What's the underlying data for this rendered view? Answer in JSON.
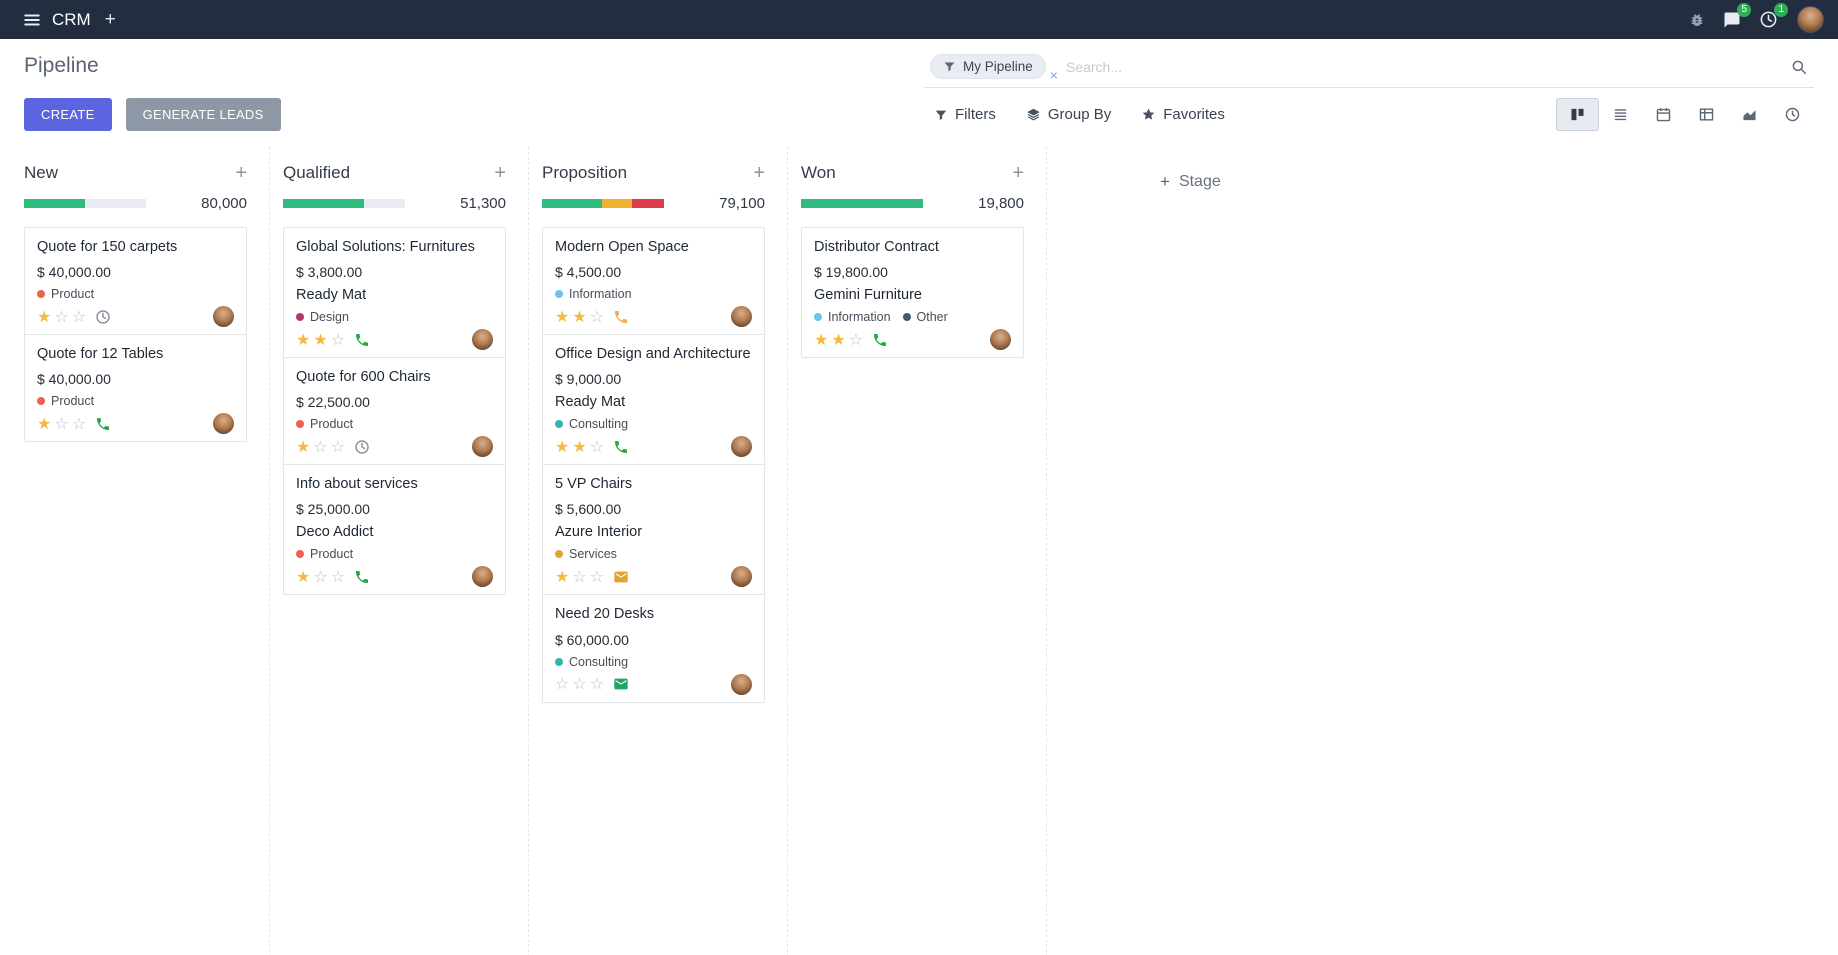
{
  "icons": {
    "plus": "+",
    "close": "×",
    "star_filled": "★",
    "star_empty": "☆"
  },
  "topbar": {
    "app_name": "CRM",
    "message_badge": "5",
    "activity_badge": "1"
  },
  "control_panel": {
    "title": "Pipeline",
    "buttons": {
      "create": "CREATE",
      "generate_leads": "GENERATE LEADS"
    },
    "search": {
      "facet_label": "My Pipeline",
      "placeholder": "Search..."
    },
    "menus": {
      "filters": "Filters",
      "group_by": "Group By",
      "favorites": "Favorites"
    },
    "view_switcher": {
      "active": "kanban",
      "views": [
        "kanban",
        "list",
        "calendar",
        "pivot",
        "graph",
        "activity"
      ]
    }
  },
  "board": {
    "add_stage_label": "Stage",
    "columns": [
      {
        "title": "New",
        "total": "80,000",
        "progress": [
          {
            "color": "#2ebd7f",
            "pct": 50
          }
        ],
        "cards": [
          {
            "title": "Quote for 150 carpets",
            "amount": "$ 40,000.00",
            "partner": null,
            "tags": [
              {
                "label": "Product",
                "color": "#f06050"
              }
            ],
            "stars": 1,
            "activity": {
              "icon": "clock",
              "color": "#8a93a2"
            }
          },
          {
            "title": "Quote for 12 Tables",
            "amount": "$ 40,000.00",
            "partner": null,
            "tags": [
              {
                "label": "Product",
                "color": "#f06050"
              }
            ],
            "stars": 1,
            "activity": {
              "icon": "phone",
              "color": "#28a745"
            }
          }
        ]
      },
      {
        "title": "Qualified",
        "total": "51,300",
        "progress": [
          {
            "color": "#2ebd7f",
            "pct": 66
          }
        ],
        "cards": [
          {
            "title": "Global Solutions: Furnitures",
            "amount": "$ 3,800.00",
            "partner": "Ready Mat",
            "tags": [
              {
                "label": "Design",
                "color": "#b3366e"
              }
            ],
            "stars": 2,
            "activity": {
              "icon": "phone",
              "color": "#28a745"
            }
          },
          {
            "title": "Quote for 600 Chairs",
            "amount": "$ 22,500.00",
            "partner": null,
            "tags": [
              {
                "label": "Product",
                "color": "#f06050"
              }
            ],
            "stars": 1,
            "activity": {
              "icon": "clock",
              "color": "#8a93a2"
            }
          },
          {
            "title": "Info about services",
            "amount": "$ 25,000.00",
            "partner": "Deco Addict",
            "tags": [
              {
                "label": "Product",
                "color": "#f06050"
              }
            ],
            "stars": 1,
            "activity": {
              "icon": "phone",
              "color": "#28a745"
            }
          }
        ]
      },
      {
        "title": "Proposition",
        "total": "79,100",
        "progress": [
          {
            "color": "#2ebd7f",
            "pct": 49
          },
          {
            "color": "#efb231",
            "pct": 25
          },
          {
            "color": "#dd3c4b",
            "pct": 26
          }
        ],
        "cards": [
          {
            "title": "Modern Open Space",
            "amount": "$ 4,500.00",
            "partner": null,
            "tags": [
              {
                "label": "Information",
                "color": "#6cc1ed"
              }
            ],
            "stars": 2,
            "activity": {
              "icon": "phone",
              "color": "#f0ad4e"
            }
          },
          {
            "title": "Office Design and Architecture",
            "amount": "$ 9,000.00",
            "partner": "Ready Mat",
            "tags": [
              {
                "label": "Consulting",
                "color": "#32b6ac"
              }
            ],
            "stars": 2,
            "activity": {
              "icon": "phone",
              "color": "#28a745"
            }
          },
          {
            "title": "5 VP Chairs",
            "amount": "$ 5,600.00",
            "partner": "Azure Interior",
            "tags": [
              {
                "label": "Services",
                "color": "#e2a33a"
              }
            ],
            "stars": 1,
            "activity": {
              "icon": "envelope",
              "color": "#e0a431"
            }
          },
          {
            "title": "Need 20 Desks",
            "amount": "$ 60,000.00",
            "partner": null,
            "tags": [
              {
                "label": "Consulting",
                "color": "#32b6ac"
              }
            ],
            "stars": 0,
            "activity": {
              "icon": "envelope",
              "color": "#21a567"
            }
          }
        ]
      },
      {
        "title": "Won",
        "total": "19,800",
        "progress": [
          {
            "color": "#2ebd7f",
            "pct": 100
          }
        ],
        "cards": [
          {
            "title": "Distributor Contract",
            "amount": "$ 19,800.00",
            "partner": "Gemini Furniture",
            "tags": [
              {
                "label": "Information",
                "color": "#6cc1ed"
              },
              {
                "label": "Other",
                "color": "#475577"
              }
            ],
            "stars": 2,
            "activity": {
              "icon": "phone",
              "color": "#28a745"
            }
          }
        ]
      }
    ]
  }
}
